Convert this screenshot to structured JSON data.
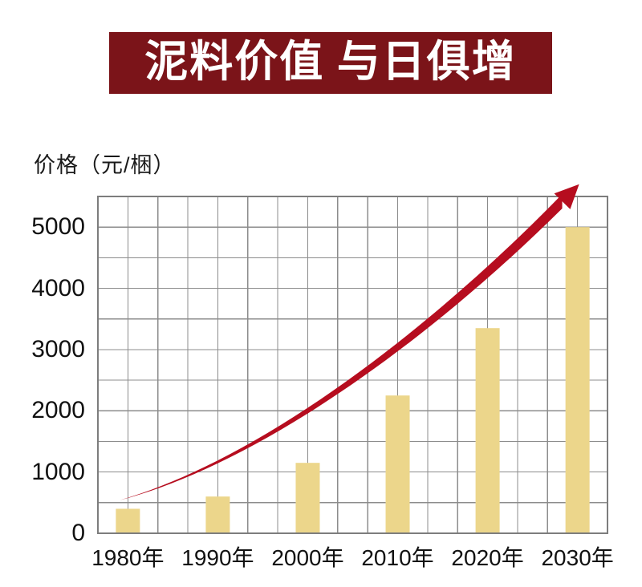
{
  "banner": {
    "text": "泥料价值 与日俱增",
    "bg_color": "#7b1419",
    "text_color": "#ffffff"
  },
  "chart_data": {
    "type": "bar",
    "title": "泥料价值 与日俱增",
    "ylabel": "价格（元/梱）",
    "xlabel": "",
    "categories": [
      "1980年",
      "1990年",
      "2000年",
      "2010年",
      "2020年",
      "2030年"
    ],
    "values": [
      400,
      600,
      1150,
      2250,
      3350,
      5000
    ],
    "y_ticks": [
      0,
      1000,
      2000,
      3000,
      4000,
      5000
    ],
    "ylim": [
      0,
      5500
    ],
    "grid": "on",
    "legend": "none",
    "bar_color": "#ecd68b",
    "grid_color": "#8c8c8c",
    "axis_text_color": "#111111",
    "trend_arrow": {
      "color": "#b60d1f",
      "start_year": "1980年",
      "start_value": 540,
      "end_year": "2030年",
      "end_value": 5700,
      "meaning": "price rising accelerating trend"
    }
  }
}
